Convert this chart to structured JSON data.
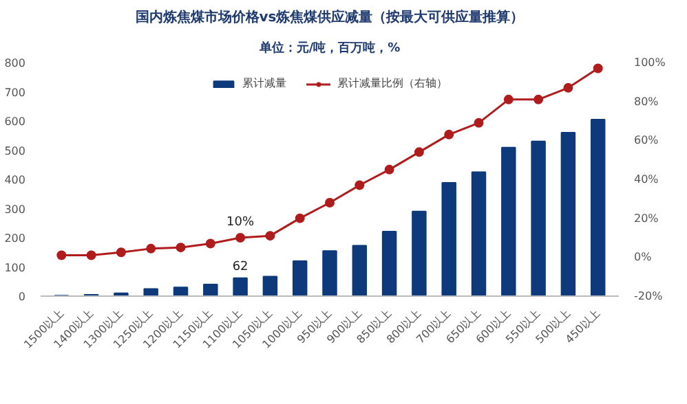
{
  "chart_data": {
    "type": "bar",
    "title": "国内炼焦煤市场价格vs炼焦煤供应减量（按最大可供应量推算）",
    "subtitle": "单位：元/吨，百万吨，%",
    "categories": [
      "1500以上",
      "1400以上",
      "1300以上",
      "1250以上",
      "1200以上",
      "1150以上",
      "1100以上",
      "1050以上",
      "1000以上",
      "950以上",
      "900以上",
      "850以上",
      "800以上",
      "700以上",
      "650以上",
      "600以上",
      "550以上",
      "500以上",
      "450以上"
    ],
    "series": [
      {
        "name": "累计减量",
        "color": "#0e3a7c",
        "values": [
          2,
          5,
          10,
          25,
          30,
          40,
          62,
          67,
          120,
          155,
          173,
          221,
          290,
          388,
          425,
          509,
          530,
          560,
          605
        ],
        "value_labels": [
          null,
          null,
          null,
          null,
          null,
          null,
          "62",
          null,
          null,
          null,
          null,
          null,
          null,
          null,
          null,
          null,
          null,
          null,
          null
        ]
      },
      {
        "name": "累计减量比例（右轴）",
        "type": "line",
        "axis": "y2",
        "color": "#b01c1c",
        "marker": "circle",
        "values": [
          1,
          1,
          2.5,
          4.4,
          5,
          7,
          10,
          11,
          20,
          28,
          37,
          45,
          54,
          63,
          69,
          81,
          81,
          87,
          97
        ],
        "value_labels": [
          null,
          null,
          null,
          null,
          null,
          null,
          "10%",
          null,
          null,
          null,
          null,
          null,
          null,
          null,
          null,
          null,
          null,
          null,
          null
        ]
      }
    ],
    "ylim": [
      0,
      800
    ],
    "yticks": [
      0,
      100,
      200,
      300,
      400,
      500,
      600,
      700,
      800
    ],
    "y2lim": [
      -20,
      100
    ],
    "y2ticks": [
      {
        "value": -20,
        "label": "-20%"
      },
      {
        "value": 0,
        "label": "0%"
      },
      {
        "value": 20,
        "label": "20%"
      },
      {
        "value": 40,
        "label": "40%"
      },
      {
        "value": 60,
        "label": "60%"
      },
      {
        "value": 80,
        "label": "80%"
      },
      {
        "value": 100,
        "label": "100%"
      }
    ],
    "grid": false,
    "legend": "top"
  }
}
